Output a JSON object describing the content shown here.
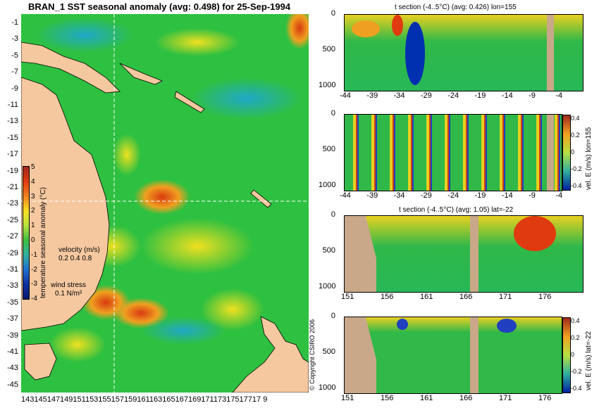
{
  "main_title": "BRAN_1 SST seasonal anomaly (avg: 0.498) for 25-Sep-1994",
  "map": {
    "lat_ticks": [
      "-1",
      "-3",
      "-5",
      "-7",
      "-9",
      "-11",
      "-13",
      "-15",
      "-17",
      "-19",
      "-21",
      "-23",
      "-25",
      "-27",
      "-29",
      "-31",
      "-33",
      "-35",
      "-37",
      "-39",
      "-41",
      "-43",
      "-45"
    ],
    "lon_ticks": [
      "143",
      "145",
      "147",
      "149",
      "151",
      "153",
      "155",
      "157",
      "159",
      "161",
      "163",
      "165",
      "167",
      "169",
      "171",
      "173",
      "175",
      "177",
      "179"
    ],
    "lon_axis_text": "14314514714915115315515715916116316516716917117317517717 9",
    "colorbar_ticks": [
      "5",
      "4",
      "3",
      "2",
      "1",
      "0",
      "-1",
      "-2",
      "-3",
      "-4"
    ],
    "colorbar_label": "temperature seasonal anomaly (°C)",
    "velocity_label": "velocity (m/s)",
    "velocity_scale": "0.2 0.4 0.8",
    "wind_label": "wind stress",
    "wind_scale": "0.1 N/m²",
    "copyright": "© Copyright CSIRO 2006"
  },
  "panels": {
    "p1_title": "t section (-4..5°C) (avg: 0.426) lon=155",
    "p3_title": "t section (-4..5°C) (avg: 1.05) lat=-22",
    "depth_ticks": [
      "0",
      "500",
      "1000"
    ],
    "lat_section_ticks": [
      "-44",
      "-39",
      "-34",
      "-29",
      "-24",
      "-19",
      "-14",
      "-9",
      "-4"
    ],
    "lon_section_ticks": [
      "151",
      "156",
      "161",
      "166",
      "171",
      "176"
    ],
    "vel_cb_ticks": [
      "0.4",
      "0.2",
      "0",
      "-0.2",
      "-0.4"
    ],
    "vel_label_lon": "vel. E (m/s) lon=155",
    "vel_label_lat": "vel. E (m/s) lat=-22"
  },
  "colors": {
    "ocean_mid": "#22bb33",
    "land": "#f5c8a0",
    "seafloor": "#c8a888",
    "warm": "#e63c00",
    "cool": "#0044cc"
  }
}
